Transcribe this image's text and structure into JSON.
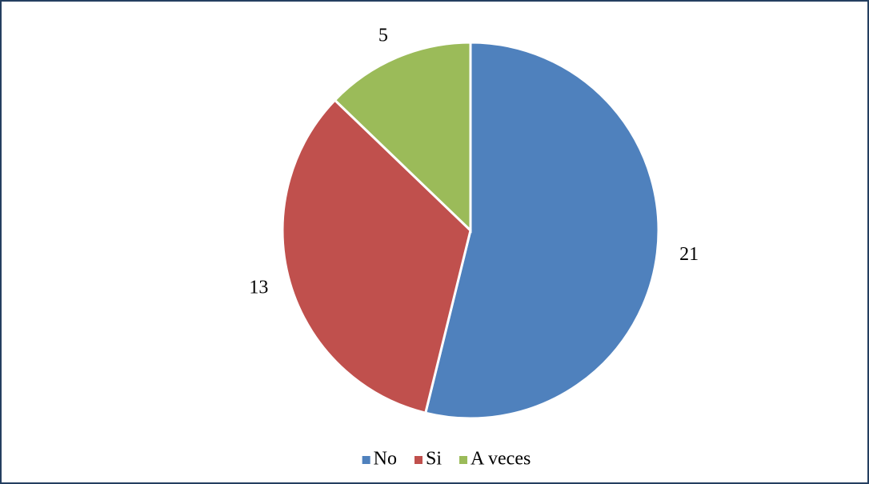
{
  "chart_data": {
    "type": "pie",
    "categories": [
      "No",
      "Si",
      "A veces"
    ],
    "values": [
      21,
      13,
      5
    ],
    "colors": [
      "#4f81bd",
      "#c0504d",
      "#9bbb59"
    ],
    "legend": "bottom"
  }
}
